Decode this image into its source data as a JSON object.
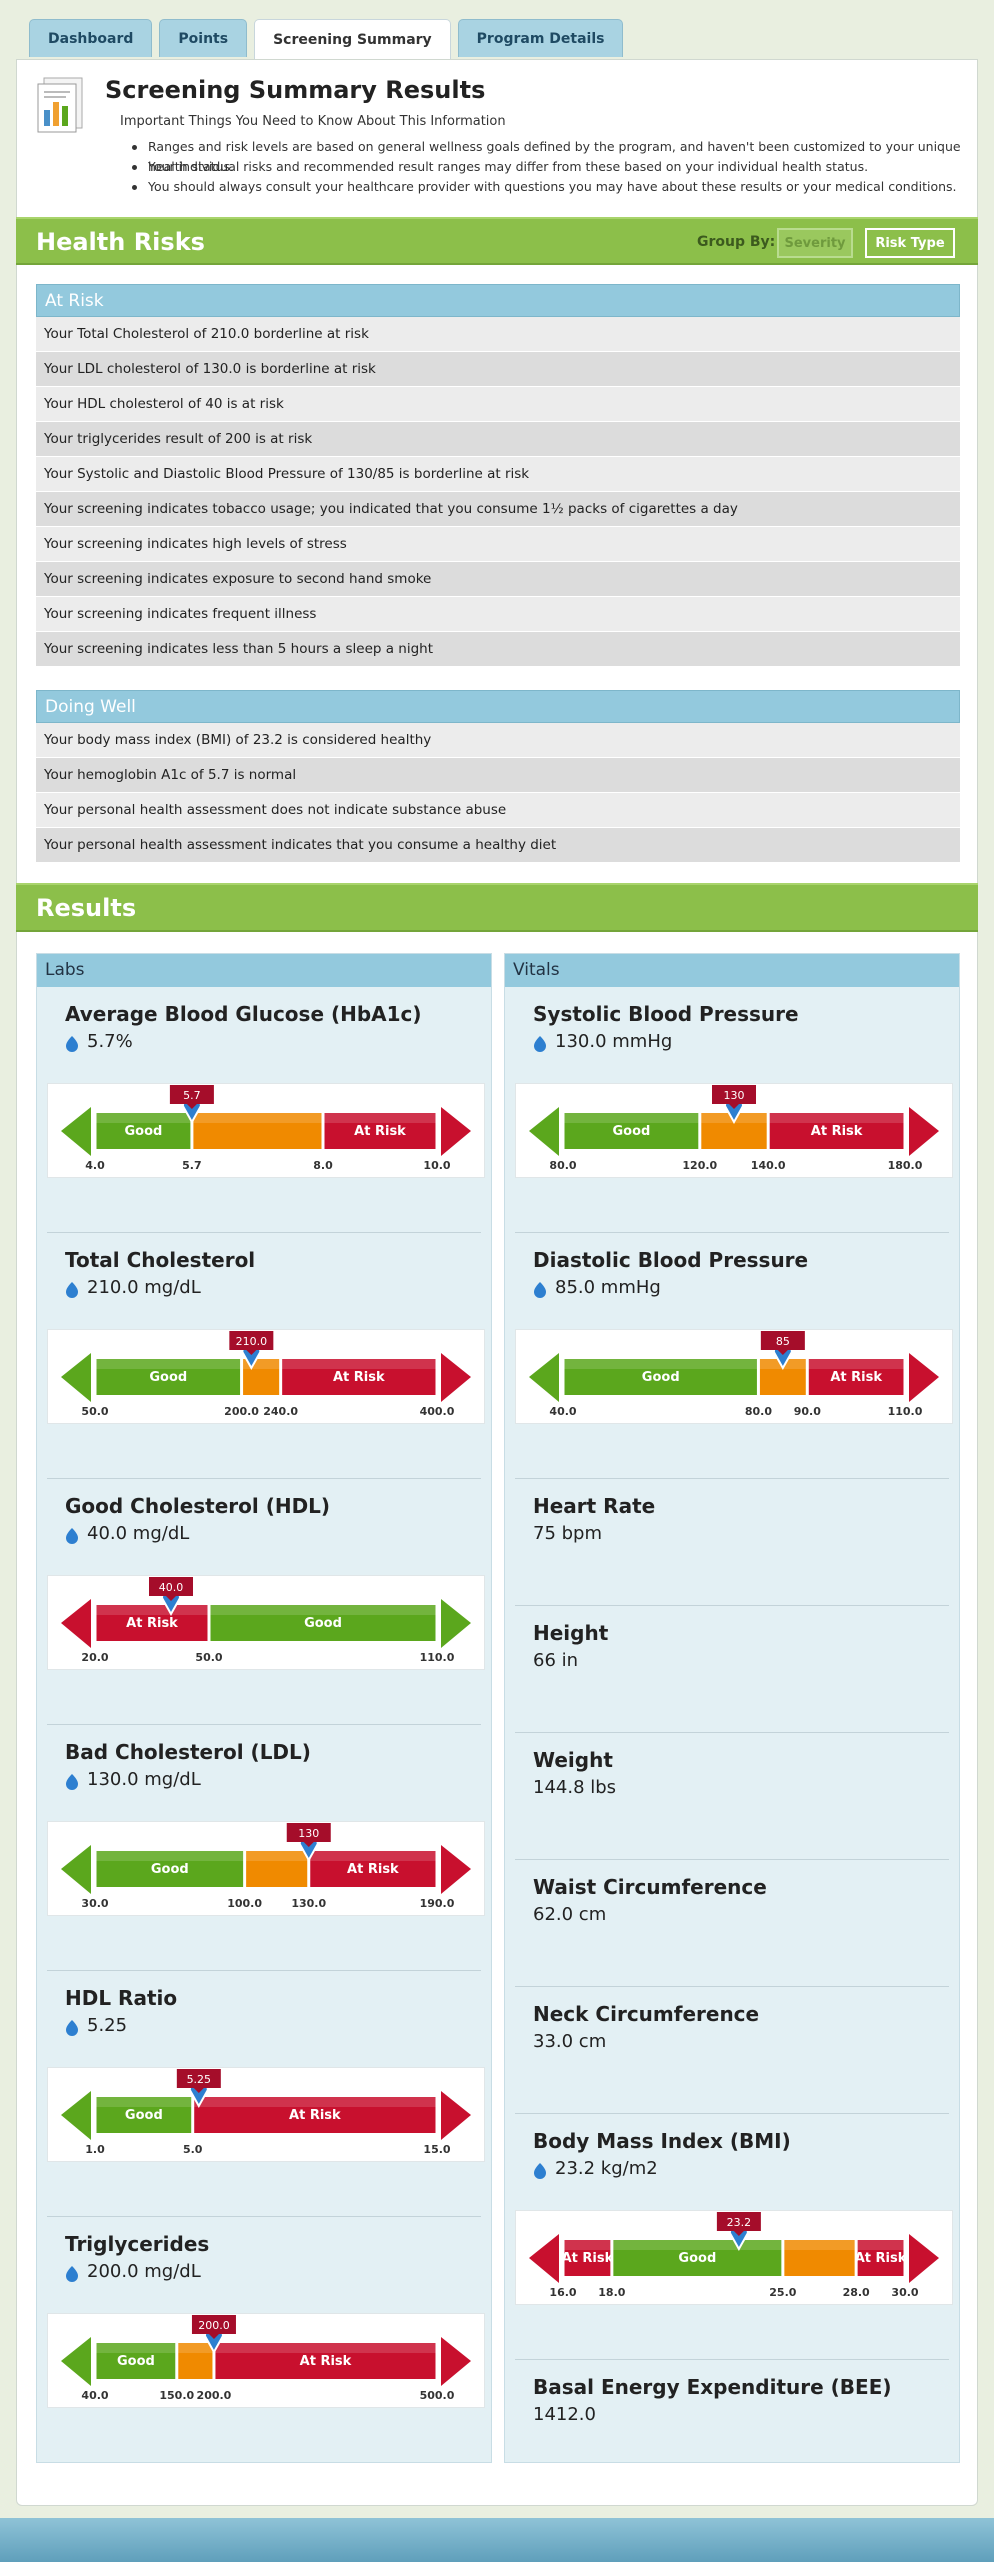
{
  "tabs": [
    "Dashboard",
    "Points",
    "Screening Summary",
    "Program Details"
  ],
  "header": {
    "title": "Screening Summary Results",
    "subtitle": "Important Things You Need to Know About This Information",
    "bullets": [
      "Ranges and risk levels are based on general wellness goals defined by the program, and haven't been customized to your unique health status.",
      "Your individual risks and recommended result ranges may differ from these based on your individual health status.",
      "You should always consult your healthcare provider with questions you may have about these results or your medical conditions."
    ]
  },
  "health_risks": {
    "title": "Health Risks",
    "group_by": "Group By:",
    "buttons": [
      "Severity",
      "Risk Type"
    ],
    "groups": [
      {
        "title": "At Risk",
        "items": [
          "Your Total Cholesterol of 210.0 borderline  at risk",
          "Your LDL cholesterol of 130.0  is borderline at risk",
          "Your HDL cholesterol of 40 is at risk",
          "Your triglycerides result of 200 is at risk",
          "Your Systolic and Diastolic Blood Pressure of 130/85  is borderline  at risk",
          "Your screening indicates tobacco usage; you indicated that you consume 1½ packs of cigarettes a day",
          "Your screening indicates high levels of stress",
          "Your screening indicates exposure to second hand smoke",
          "Your screening indicates frequent illness",
          "Your screening indicates less than 5 hours  a sleep a night"
        ]
      },
      {
        "title": "Doing Well",
        "items": [
          "Your body mass index (BMI) of 23.2 is considered healthy",
          "Your hemoglobin A1c of 5.7 is normal",
          "Your personal health assessment does not indicate substance abuse",
          "Your personal health assessment indicates that you consume  a healthy diet"
        ]
      }
    ]
  },
  "results": {
    "title": "Results",
    "columns": [
      {
        "title": "Labs",
        "items": [
          {
            "name": "Average Blood Glucose (HbA1c)",
            "value": "5.7%",
            "gauge": {
              "ticks": [
                {
                  "value": 4,
                  "label": "4.0"
                },
                {
                  "value": 5.7,
                  "label": "5.7"
                },
                {
                  "value": 8,
                  "label": "8.0"
                },
                {
                  "value": 10,
                  "label": "10.0"
                }
              ],
              "segments": [
                {
                  "label": "Good",
                  "color": "#5ba71d"
                },
                {
                  "label": null,
                  "color": "#f08a00"
                },
                {
                  "label": "At Risk",
                  "color": "#c8102e"
                }
              ],
              "marker": {
                "value": 5.7,
                "label": "5.7"
              }
            }
          },
          {
            "name": "Total Cholesterol",
            "value": "210.0 mg/dL",
            "gauge": {
              "ticks": [
                {
                  "value": 50,
                  "label": "50.0"
                },
                {
                  "value": 200,
                  "label": "200.0"
                },
                {
                  "value": 240,
                  "label": "240.0"
                },
                {
                  "value": 400,
                  "label": "400.0"
                }
              ],
              "segments": [
                {
                  "label": "Good",
                  "color": "#5ba71d"
                },
                {
                  "label": null,
                  "color": "#f08a00"
                },
                {
                  "label": "At Risk",
                  "color": "#c8102e"
                }
              ],
              "marker": {
                "value": 210,
                "label": "210.0"
              }
            }
          },
          {
            "name": "Good Cholesterol (HDL)",
            "value": "40.0 mg/dL",
            "gauge": {
              "ticks": [
                {
                  "value": 20,
                  "label": "20.0"
                },
                {
                  "value": 50,
                  "label": "50.0"
                },
                {
                  "value": 110,
                  "label": "110.0"
                }
              ],
              "segments": [
                {
                  "label": "At Risk",
                  "color": "#c8102e"
                },
                {
                  "label": "Good",
                  "color": "#5ba71d"
                }
              ],
              "marker": {
                "value": 40,
                "label": "40.0"
              }
            }
          },
          {
            "name": "Bad Cholesterol (LDL)",
            "value": "130.0 mg/dL",
            "gauge": {
              "ticks": [
                {
                  "value": 30,
                  "label": "30.0"
                },
                {
                  "value": 100,
                  "label": "100.0"
                },
                {
                  "value": 130,
                  "label": "130.0"
                },
                {
                  "value": 190,
                  "label": "190.0"
                }
              ],
              "segments": [
                {
                  "label": "Good",
                  "color": "#5ba71d"
                },
                {
                  "label": null,
                  "color": "#f08a00"
                },
                {
                  "label": "At Risk",
                  "color": "#c8102e"
                }
              ],
              "marker": {
                "value": 130,
                "label": "130"
              }
            }
          },
          {
            "name": "HDL Ratio",
            "value": "5.25",
            "gauge": {
              "ticks": [
                {
                  "value": 1,
                  "label": "1.0"
                },
                {
                  "value": 5,
                  "label": "5.0"
                },
                {
                  "value": 15,
                  "label": "15.0"
                }
              ],
              "segments": [
                {
                  "label": "Good",
                  "color": "#5ba71d"
                },
                {
                  "label": "At Risk",
                  "color": "#c8102e"
                }
              ],
              "marker": {
                "value": 5.25,
                "label": "5.25"
              }
            }
          },
          {
            "name": "Triglycerides",
            "value": "200.0 mg/dL",
            "gauge": {
              "ticks": [
                {
                  "value": 40,
                  "label": "40.0"
                },
                {
                  "value": 150,
                  "label": "150.0"
                },
                {
                  "value": 200,
                  "label": "200.0"
                },
                {
                  "value": 500,
                  "label": "500.0"
                }
              ],
              "segments": [
                {
                  "label": "Good",
                  "color": "#5ba71d"
                },
                {
                  "label": null,
                  "color": "#f08a00"
                },
                {
                  "label": "At Risk",
                  "color": "#c8102e"
                }
              ],
              "marker": {
                "value": 200,
                "label": "200.0"
              }
            }
          }
        ]
      },
      {
        "title": "Vitals",
        "items": [
          {
            "name": "Systolic Blood Pressure",
            "value": "130.0 mmHg",
            "gauge": {
              "ticks": [
                {
                  "value": 80,
                  "label": "80.0"
                },
                {
                  "value": 120,
                  "label": "120.0"
                },
                {
                  "value": 140,
                  "label": "140.0"
                },
                {
                  "value": 180,
                  "label": "180.0"
                }
              ],
              "segments": [
                {
                  "label": "Good",
                  "color": "#5ba71d"
                },
                {
                  "label": null,
                  "color": "#f08a00"
                },
                {
                  "label": "At Risk",
                  "color": "#c8102e"
                }
              ],
              "marker": {
                "value": 130,
                "label": "130"
              }
            }
          },
          {
            "name": "Diastolic Blood Pressure",
            "value": "85.0 mmHg",
            "gauge": {
              "ticks": [
                {
                  "value": 40,
                  "label": "40.0"
                },
                {
                  "value": 80,
                  "label": "80.0"
                },
                {
                  "value": 90,
                  "label": "90.0"
                },
                {
                  "value": 110,
                  "label": "110.0"
                }
              ],
              "segments": [
                {
                  "label": "Good",
                  "color": "#5ba71d"
                },
                {
                  "label": null,
                  "color": "#f08a00"
                },
                {
                  "label": "At Risk",
                  "color": "#c8102e"
                }
              ],
              "marker": {
                "value": 85,
                "label": "85"
              }
            }
          },
          {
            "name": "Heart Rate",
            "value": "75 bpm"
          },
          {
            "name": "Height",
            "value": "66 in"
          },
          {
            "name": "Weight",
            "value": "144.8 lbs"
          },
          {
            "name": "Waist Circumference",
            "value": "62.0 cm"
          },
          {
            "name": "Neck Circumference",
            "value": "33.0 cm"
          },
          {
            "name": "Body Mass Index (BMI)",
            "value": "23.2 kg/m2",
            "gauge": {
              "ticks": [
                {
                  "value": 16,
                  "label": "16.0"
                },
                {
                  "value": 18,
                  "label": "18.0"
                },
                {
                  "value": 25,
                  "label": "25.0"
                },
                {
                  "value": 28,
                  "label": "28.0"
                },
                {
                  "value": 30,
                  "label": "30.0"
                }
              ],
              "segments": [
                {
                  "label": "At Risk",
                  "color": "#c8102e"
                },
                {
                  "label": "Good",
                  "color": "#5ba71d"
                },
                {
                  "label": null,
                  "color": "#f08a00"
                },
                {
                  "label": "At Risk",
                  "color": "#c8102e"
                }
              ],
              "marker": {
                "value": 23.2,
                "label": "23.2"
              }
            }
          },
          {
            "name": "Basal Energy Expenditure (BEE)",
            "value": "1412.0"
          }
        ]
      }
    ]
  }
}
